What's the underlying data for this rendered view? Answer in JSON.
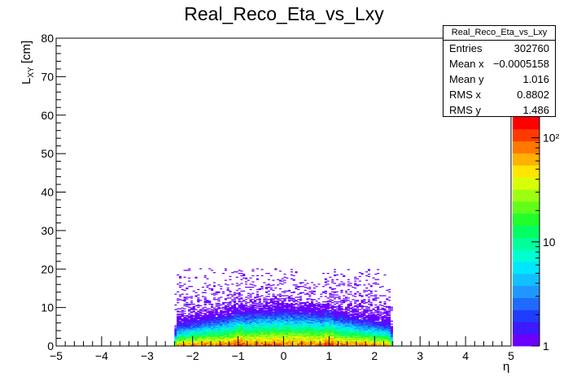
{
  "chart_data": {
    "type": "heatmap",
    "title": "Real_Reco_Eta_vs_Lxy",
    "xlabel": "η",
    "ylabel": "L",
    "ylabel_sub": "XY",
    "ylabel_unit": "[cm]",
    "xlim": [
      -5,
      5
    ],
    "ylim": [
      0,
      80
    ],
    "x_ticks": [
      "−5",
      "−4",
      "−3",
      "−2",
      "−1",
      "0",
      "1",
      "2",
      "3",
      "4",
      "5"
    ],
    "y_ticks": [
      "0",
      "10",
      "20",
      "30",
      "40",
      "50",
      "60",
      "70",
      "80"
    ],
    "color_scale": "log",
    "color_ticks": [
      "1",
      "10",
      "10²"
    ],
    "eta_range_populated": [
      -2.4,
      2.4
    ],
    "palette": [
      "#6a00ff",
      "#3d1aff",
      "#1f3dff",
      "#1f6aff",
      "#1f97ff",
      "#12bfff",
      "#00e6ff",
      "#00ffd0",
      "#00ff9a",
      "#00ff60",
      "#20ff2a",
      "#5fff1a",
      "#9dff10",
      "#d8ff08",
      "#ffe600",
      "#ffb000",
      "#ff7800",
      "#ff3a00",
      "#ff0000"
    ],
    "stats": {
      "name": "Real_Reco_Eta_vs_Lxy",
      "entries_label": "Entries",
      "entries": "302760",
      "mean_x_label": "Mean x",
      "mean_x": "−0.0005158",
      "mean_y_label": "Mean y",
      "mean_y": "1.016",
      "rms_x_label": "RMS x",
      "rms_x": "0.8802",
      "rms_y_label": "RMS y",
      "rms_y": "1.486"
    }
  }
}
